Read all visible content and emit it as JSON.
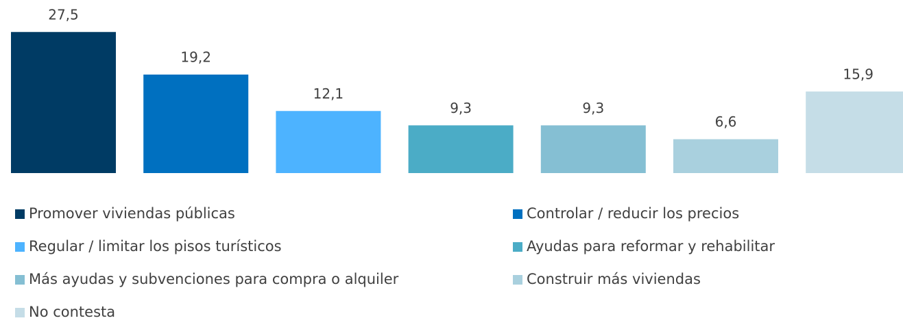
{
  "chart_data": {
    "type": "bar",
    "series": [
      {
        "name": "Promover viviendas públicas",
        "color": "#003b64",
        "values": [
          27.5
        ],
        "value_labels": [
          "27,5"
        ]
      },
      {
        "name": "Controlar / reducir los precios",
        "color": "#0070c0",
        "values": [
          19.2
        ],
        "value_labels": [
          "19,2"
        ]
      },
      {
        "name": "Regular / limitar los pisos turísticos",
        "color": "#4db3ff",
        "values": [
          12.1
        ],
        "value_labels": [
          "12,1"
        ]
      },
      {
        "name": "Ayudas para reformar y rehabilitar",
        "color": "#4bacc6",
        "values": [
          9.3
        ],
        "value_labels": [
          "9,3"
        ]
      },
      {
        "name": "Más ayudas y subvenciones para compra o alquiler",
        "color": "#85bfd3",
        "values": [
          9.3
        ],
        "value_labels": [
          "9,3"
        ]
      },
      {
        "name": "Construir más viviendas",
        "color": "#a9d0de",
        "values": [
          6.6
        ],
        "value_labels": [
          "6,6"
        ]
      },
      {
        "name": "No contesta",
        "color": "#c5dde7",
        "values": [
          15.9
        ],
        "value_labels": [
          "15,9"
        ]
      }
    ],
    "ylim": [
      0,
      28
    ]
  }
}
